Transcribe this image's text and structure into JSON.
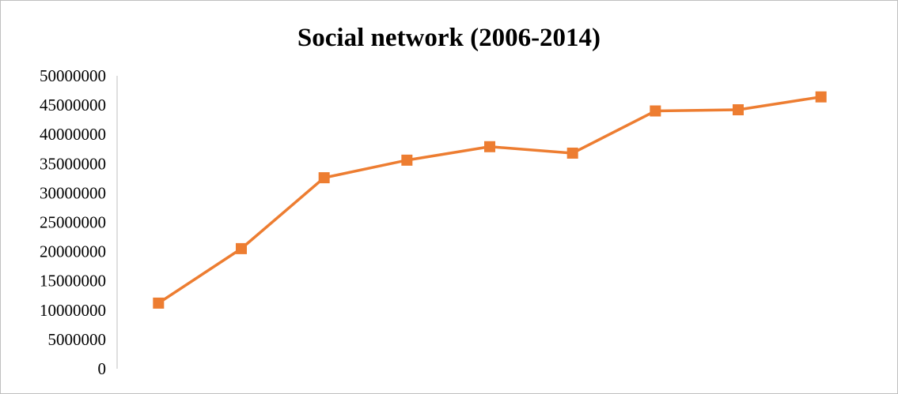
{
  "chart_data": {
    "type": "line",
    "title": "Social network (2006-2014)",
    "xlabel": "",
    "ylabel": "",
    "categories": [
      "",
      "",
      "",
      "",
      "",
      "",
      "",
      "",
      ""
    ],
    "series": [
      {
        "values": [
          11200000,
          20500000,
          32600000,
          35600000,
          37900000,
          36800000,
          44000000,
          44200000,
          46400000
        ],
        "color": "#ED7D31",
        "marker": "square"
      }
    ],
    "ylim": [
      0,
      50000000
    ],
    "yticks": [
      "0",
      "5000000",
      "10000000",
      "15000000",
      "20000000",
      "25000000",
      "30000000",
      "35000000",
      "40000000",
      "45000000",
      "50000000"
    ],
    "grid": false,
    "legend": "none"
  }
}
